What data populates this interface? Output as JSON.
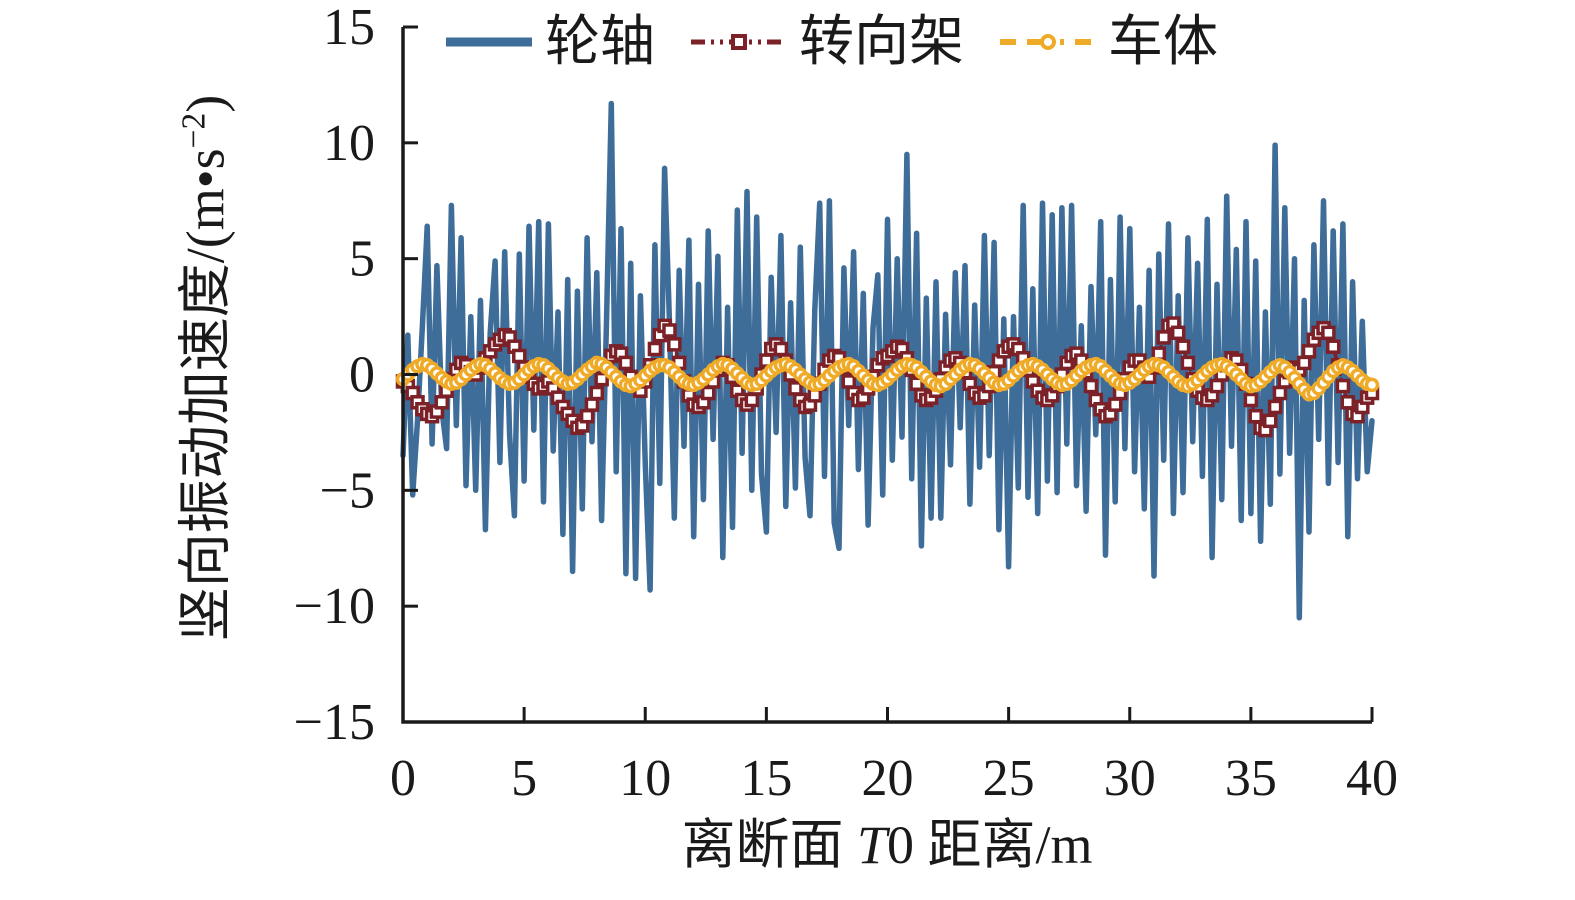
{
  "chart_data": {
    "type": "line",
    "title": "",
    "xlabel": "离断面 T0 距离/m",
    "xlabel_parts": {
      "pre": "离断面 ",
      "italic": "T",
      "post": "0 距离/m"
    },
    "ylabel": "竖向振动加速度/(m·s⁻²)",
    "ylabel_parts": {
      "main": "竖向振动加速度/(m•s",
      "sup": "−2",
      "close": ")"
    },
    "xlim": [
      0,
      40
    ],
    "ylim": [
      -15,
      15
    ],
    "x_ticks": [
      0,
      5,
      10,
      15,
      20,
      25,
      30,
      35,
      40
    ],
    "x_tick_labels": [
      "0",
      "5",
      "10",
      "15",
      "20",
      "25",
      "30",
      "35",
      "40"
    ],
    "y_ticks": [
      15,
      10,
      5,
      0,
      -5,
      -10,
      -15
    ],
    "y_tick_labels": [
      "15",
      "10",
      "5",
      "0",
      "−5",
      "−10",
      "−15"
    ],
    "grid": false,
    "legend_position": "top-center",
    "axis_color": "#1a1a1a",
    "series": [
      {
        "name": "轮轴",
        "id": "wheelset",
        "color": "#3E6D99",
        "line_style": "solid",
        "marker": "none",
        "x0": 0,
        "dx": 0.2,
        "values": [
          -3.5,
          1.7,
          -5.2,
          -2.0,
          2.1,
          6.4,
          -3.0,
          4.7,
          -1.5,
          -3.2,
          7.3,
          -2.2,
          5.9,
          -4.8,
          2.5,
          -5.0,
          3.2,
          -6.7,
          1.8,
          4.9,
          -3.8,
          5.3,
          -2.6,
          -6.1,
          5.2,
          -4.6,
          6.4,
          -2.4,
          6.6,
          -5.5,
          6.5,
          -3.3,
          2.7,
          -6.9,
          4.1,
          -8.5,
          3.6,
          -5.8,
          5.9,
          -2.9,
          4.4,
          -6.3,
          2.3,
          11.7,
          -4.2,
          6.3,
          -8.6,
          4.8,
          -8.8,
          3.4,
          -3.9,
          -9.3,
          5.6,
          -4.7,
          8.9,
          2.2,
          -6.2,
          4.5,
          -3.1,
          5.8,
          -7.0,
          3.9,
          -5.4,
          6.2,
          -2.8,
          5.1,
          -7.9,
          2.9,
          -6.6,
          7.1,
          -3.4,
          7.9,
          -5.0,
          6.8,
          -4.3,
          -6.8,
          4.2,
          -2.5,
          6.0,
          -5.7,
          3.1,
          -4.9,
          5.5,
          -3.6,
          -6.1,
          2.8,
          7.4,
          -4.4,
          7.5,
          -6.4,
          -7.5,
          4.6,
          -2.2,
          5.3,
          -4.1,
          3.5,
          -6.5,
          2.0,
          4.3,
          -5.2,
          6.7,
          -3.7,
          5.0,
          -2.7,
          9.5,
          -4.5,
          6.1,
          -7.4,
          3.3,
          -6.2,
          4.0,
          -6.2,
          2.6,
          -3.9,
          4.4,
          -2.3,
          4.7,
          -5.6,
          3.0,
          -4.0,
          6.0,
          -3.5,
          5.7,
          -6.7,
          2.4,
          -8.3,
          2.5,
          -4.9,
          7.3,
          -5.3,
          3.7,
          -6.0,
          7.4,
          -4.6,
          6.9,
          -5.1,
          7.2,
          -3.0,
          7.3,
          -4.8,
          2.1,
          -5.9,
          3.8,
          -2.6,
          6.6,
          -7.8,
          4.1,
          -5.5,
          6.8,
          -3.2,
          6.3,
          -4.2,
          2.9,
          -5.8,
          4.5,
          -8.7,
          5.2,
          -3.7,
          6.5,
          -6.0,
          3.4,
          -5.1,
          5.9,
          -2.9,
          4.8,
          -4.4,
          6.7,
          -7.9,
          3.9,
          -5.4,
          7.7,
          -3.1,
          5.4,
          -6.3,
          6.6,
          -6.0,
          4.9,
          -7.2,
          2.7,
          -5.6,
          9.9,
          -4.3,
          7.2,
          -3.4,
          5.0,
          -10.5,
          3.2,
          -6.8,
          5.6,
          -2.8,
          7.5,
          -4.7,
          6.2,
          -3.8,
          6.5,
          -7.0,
          4.0,
          -4.5,
          2.3,
          -4.2,
          -2.0
        ]
      },
      {
        "name": "转向架",
        "id": "bogie",
        "color": "#7B2127",
        "line_style": "dash-dot-dot",
        "marker": "square",
        "x0": 0,
        "dx": 0.2,
        "values": [
          -0.3,
          -0.5,
          -0.8,
          -1.2,
          -1.5,
          -1.7,
          -1.8,
          -1.6,
          -1.2,
          -0.7,
          -0.2,
          0.2,
          0.5,
          0.4,
          0.1,
          0.0,
          0.3,
          0.7,
          1.0,
          1.3,
          1.5,
          1.7,
          1.6,
          1.2,
          0.8,
          0.3,
          -0.1,
          -0.4,
          -0.6,
          -0.5,
          -0.3,
          -0.6,
          -1.0,
          -1.4,
          -1.7,
          -2.0,
          -2.3,
          -2.2,
          -1.8,
          -1.3,
          -0.8,
          -0.2,
          0.4,
          0.8,
          1.0,
          0.9,
          0.5,
          -0.1,
          -0.5,
          -0.7,
          -0.3,
          0.4,
          1.1,
          1.7,
          2.1,
          1.9,
          1.3,
          0.5,
          -0.3,
          -0.9,
          -1.3,
          -1.4,
          -1.2,
          -0.8,
          -0.3,
          0.2,
          0.5,
          0.4,
          -0.1,
          -0.7,
          -1.1,
          -1.3,
          -1.1,
          -0.6,
          0.0,
          0.6,
          1.1,
          1.3,
          1.1,
          0.6,
          0.0,
          -0.6,
          -1.1,
          -1.4,
          -1.3,
          -0.9,
          -0.4,
          0.2,
          0.6,
          0.8,
          0.7,
          0.3,
          -0.3,
          -0.8,
          -1.1,
          -1.0,
          -0.6,
          -0.1,
          0.4,
          0.7,
          0.8,
          1.0,
          1.2,
          1.1,
          0.7,
          0.2,
          -0.4,
          -0.9,
          -1.1,
          -1.0,
          -0.7,
          -0.2,
          0.3,
          0.6,
          0.7,
          0.5,
          0.1,
          -0.4,
          -0.8,
          -1.0,
          -0.9,
          -0.5,
          0.1,
          0.6,
          1.0,
          1.2,
          1.3,
          1.1,
          0.7,
          0.2,
          -0.3,
          -0.7,
          -1.0,
          -1.1,
          -0.9,
          -0.5,
          0.0,
          0.5,
          0.8,
          0.9,
          0.6,
          0.1,
          -0.5,
          -1.1,
          -1.5,
          -1.8,
          -1.7,
          -1.3,
          -0.8,
          -0.2,
          0.3,
          0.6,
          0.6,
          0.3,
          -0.1,
          0.3,
          0.9,
          1.6,
          2.1,
          2.2,
          1.8,
          1.2,
          0.5,
          -0.2,
          -0.7,
          -1.0,
          -1.1,
          -0.9,
          -0.5,
          0.0,
          0.4,
          0.7,
          0.6,
          0.2,
          -0.4,
          -1.1,
          -1.8,
          -2.3,
          -2.4,
          -2.0,
          -1.4,
          -0.8,
          -0.3,
          0.1,
          0.3,
          0.2,
          0.5,
          1.0,
          1.5,
          1.8,
          2.0,
          1.8,
          1.2,
          0.4,
          -0.5,
          -1.2,
          -1.7,
          -1.8,
          -1.4,
          -1.0,
          -0.8
        ]
      },
      {
        "name": "车体",
        "id": "carbody",
        "color": "#EFAB28",
        "line_style": "dashed",
        "marker": "circle",
        "x0": 0,
        "dx": 0.2,
        "values": [
          -0.2,
          0.0,
          0.2,
          0.35,
          0.45,
          0.4,
          0.25,
          0.05,
          -0.15,
          -0.3,
          -0.4,
          -0.35,
          -0.2,
          0.0,
          0.2,
          0.35,
          0.45,
          0.4,
          0.25,
          0.05,
          -0.15,
          -0.3,
          -0.4,
          -0.35,
          -0.2,
          0.0,
          0.2,
          0.35,
          0.45,
          0.4,
          0.25,
          0.05,
          -0.15,
          -0.3,
          -0.4,
          -0.35,
          -0.2,
          0.0,
          0.2,
          0.35,
          0.5,
          0.45,
          0.3,
          0.1,
          -0.1,
          -0.3,
          -0.45,
          -0.5,
          -0.4,
          -0.25,
          -0.05,
          0.15,
          0.3,
          0.4,
          0.4,
          0.3,
          0.1,
          -0.1,
          -0.3,
          -0.4,
          -0.45,
          -0.35,
          -0.2,
          0.0,
          0.2,
          0.35,
          0.45,
          0.4,
          0.25,
          0.05,
          -0.15,
          -0.35,
          -0.45,
          -0.4,
          -0.25,
          -0.05,
          0.15,
          0.3,
          0.4,
          0.45,
          0.35,
          0.2,
          0.0,
          -0.2,
          -0.35,
          -0.45,
          -0.4,
          -0.25,
          -0.05,
          0.15,
          0.3,
          0.4,
          0.45,
          0.35,
          0.15,
          -0.05,
          -0.25,
          -0.4,
          -0.45,
          -0.35,
          -0.2,
          0.0,
          0.2,
          0.35,
          0.45,
          0.4,
          0.3,
          0.1,
          -0.1,
          -0.3,
          -0.45,
          -0.5,
          -0.4,
          -0.2,
          0.0,
          0.2,
          0.35,
          0.45,
          0.4,
          0.25,
          0.05,
          -0.15,
          -0.35,
          -0.45,
          -0.4,
          -0.25,
          -0.05,
          0.15,
          0.3,
          0.4,
          0.45,
          0.35,
          0.2,
          0.0,
          -0.2,
          -0.35,
          -0.45,
          -0.4,
          -0.25,
          -0.05,
          0.15,
          0.3,
          0.4,
          0.45,
          0.35,
          0.15,
          -0.05,
          -0.25,
          -0.4,
          -0.45,
          -0.35,
          -0.2,
          0.0,
          0.2,
          0.35,
          0.45,
          0.4,
          0.3,
          0.1,
          -0.1,
          -0.3,
          -0.45,
          -0.5,
          -0.4,
          -0.25,
          -0.05,
          0.15,
          0.3,
          0.4,
          0.45,
          0.35,
          0.2,
          0.0,
          -0.2,
          -0.4,
          -0.5,
          -0.45,
          -0.3,
          -0.1,
          0.1,
          0.3,
          0.4,
          0.3,
          0.1,
          -0.15,
          -0.4,
          -0.65,
          -0.85,
          -0.8,
          -0.6,
          -0.35,
          -0.1,
          0.15,
          0.3,
          0.4,
          0.3,
          0.15,
          -0.05,
          -0.25,
          -0.4,
          -0.45
        ]
      }
    ]
  }
}
